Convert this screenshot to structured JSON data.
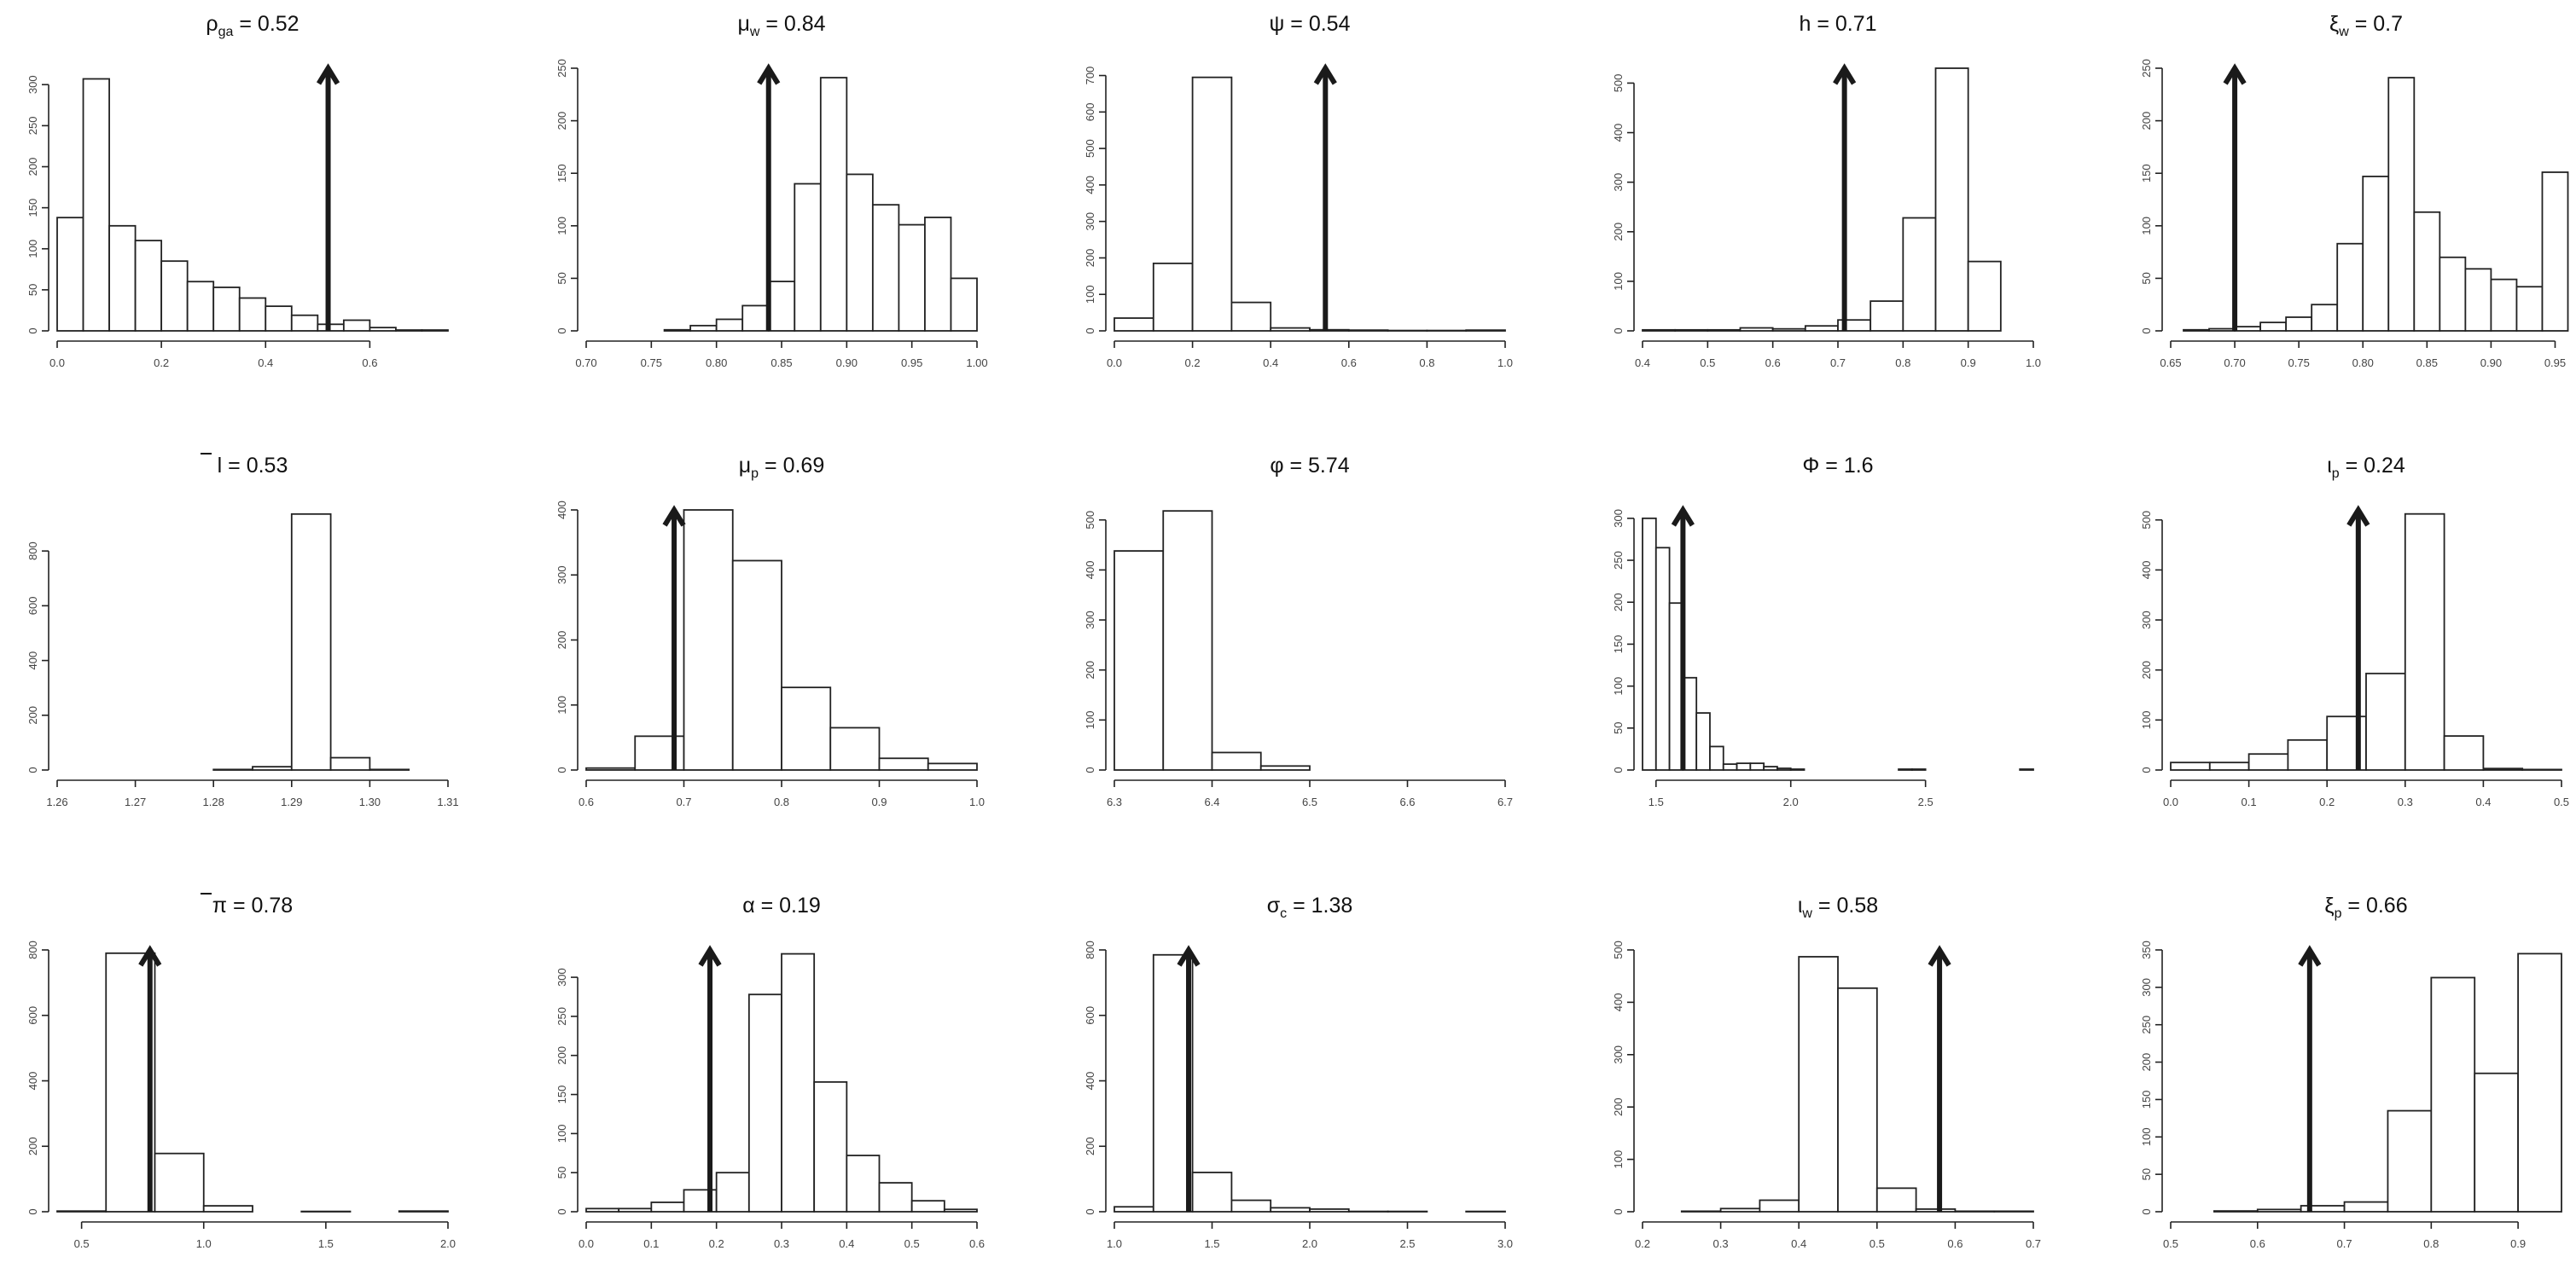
{
  "chart_data": [
    {
      "type": "bar",
      "title": {
        "base": "ρ",
        "sub": "ga",
        "rest": " = 0.52"
      },
      "marker": 0.52,
      "bins": [
        0,
        0.05,
        0.1,
        0.15,
        0.2,
        0.25,
        0.3,
        0.35,
        0.4,
        0.45,
        0.5,
        0.55,
        0.6,
        0.65,
        0.7,
        0.75
      ],
      "counts": [
        138,
        307,
        128,
        110,
        85,
        60,
        53,
        40,
        30,
        19,
        8,
        13,
        4,
        1,
        1
      ],
      "xlim": [
        0,
        0.75
      ],
      "xticks": [
        0.0,
        0.2,
        0.4,
        0.6
      ],
      "xtick_labels": [
        "0.0",
        "0.2",
        "0.4",
        "0.6"
      ],
      "ylim": [
        0,
        320
      ],
      "yticks": [
        0,
        50,
        100,
        150,
        200,
        250,
        300
      ],
      "ytick_labels": [
        "0",
        "50",
        "100",
        "150",
        "200",
        "250",
        "300"
      ]
    },
    {
      "type": "bar",
      "title": {
        "base": "μ",
        "sub": "w",
        "rest": " = 0.84"
      },
      "marker": 0.84,
      "bins": [
        0.7,
        0.72,
        0.74,
        0.76,
        0.78,
        0.8,
        0.82,
        0.84,
        0.86,
        0.88,
        0.9,
        0.92,
        0.94,
        0.96,
        0.98,
        1.0
      ],
      "counts": [
        0,
        0,
        0,
        1,
        5,
        11,
        24,
        47,
        140,
        241,
        149,
        120,
        101,
        108,
        50
      ],
      "xlim": [
        0.7,
        1.0
      ],
      "xticks": [
        0.7,
        0.75,
        0.8,
        0.85,
        0.9,
        0.95,
        1.0
      ],
      "xtick_labels": [
        "0.70",
        "0.75",
        "0.80",
        "0.85",
        "0.90",
        "0.95",
        "1.00"
      ],
      "ylim": [
        0,
        250
      ],
      "yticks": [
        0,
        50,
        100,
        150,
        200,
        250
      ],
      "ytick_labels": [
        "0",
        "50",
        "100",
        "150",
        "200",
        "250"
      ]
    },
    {
      "type": "bar",
      "title": {
        "base": "ψ",
        "sub": "",
        "rest": " = 0.54"
      },
      "marker": 0.54,
      "bins": [
        0,
        0.1,
        0.2,
        0.3,
        0.4,
        0.5,
        0.6,
        0.7,
        0.8,
        0.9,
        1.0
      ],
      "counts": [
        35,
        185,
        695,
        78,
        8,
        3,
        2,
        1,
        1,
        2
      ],
      "xlim": [
        0,
        1
      ],
      "xticks": [
        0,
        0.2,
        0.4,
        0.6,
        0.8,
        1.0
      ],
      "xtick_labels": [
        "0.0",
        "0.2",
        "0.4",
        "0.6",
        "0.8",
        "1.0"
      ],
      "ylim": [
        0,
        720
      ],
      "yticks": [
        0,
        100,
        200,
        300,
        400,
        500,
        600,
        700
      ],
      "ytick_labels": [
        "0",
        "100",
        "200",
        "300",
        "400",
        "500",
        "600",
        "700"
      ]
    },
    {
      "type": "bar",
      "title": {
        "base": "h",
        "sub": "",
        "rest": " = 0.71"
      },
      "marker": 0.71,
      "bins": [
        0.4,
        0.45,
        0.5,
        0.55,
        0.6,
        0.65,
        0.7,
        0.75,
        0.8,
        0.85,
        0.9,
        0.95
      ],
      "counts": [
        2,
        2,
        2,
        6,
        4,
        10,
        22,
        60,
        228,
        530,
        140
      ],
      "xlim": [
        0.4,
        1.0
      ],
      "xticks": [
        0.4,
        0.5,
        0.6,
        0.7,
        0.8,
        0.9,
        1.0
      ],
      "xtick_labels": [
        "0.4",
        "0.5",
        "0.6",
        "0.7",
        "0.8",
        "0.9",
        "1.0"
      ],
      "ylim": [
        0,
        530
      ],
      "yticks": [
        0,
        100,
        200,
        300,
        400,
        500
      ],
      "ytick_labels": [
        "0",
        "100",
        "200",
        "300",
        "400",
        "500"
      ]
    },
    {
      "type": "bar",
      "title": {
        "base": "ξ",
        "sub": "w",
        "rest": " = 0.7"
      },
      "marker": 0.7,
      "bins": [
        0.66,
        0.68,
        0.7,
        0.72,
        0.74,
        0.76,
        0.78,
        0.8,
        0.82,
        0.84,
        0.86,
        0.88,
        0.9,
        0.92,
        0.94,
        0.96
      ],
      "counts": [
        1,
        2,
        4,
        8,
        13,
        25,
        83,
        147,
        241,
        113,
        70,
        59,
        49,
        42,
        151
      ],
      "xlim": [
        0.65,
        0.955
      ],
      "xticks": [
        0.65,
        0.7,
        0.75,
        0.8,
        0.85,
        0.9,
        0.95
      ],
      "xtick_labels": [
        "0.65",
        "0.70",
        "0.75",
        "0.80",
        "0.85",
        "0.90",
        "0.95"
      ],
      "ylim": [
        0,
        250
      ],
      "yticks": [
        0,
        50,
        100,
        150,
        200,
        250
      ],
      "ytick_labels": [
        "0",
        "50",
        "100",
        "150",
        "200",
        "250"
      ]
    },
    {
      "type": "bar",
      "title": {
        "base": "l",
        "sub": "",
        "rest": " = 0.53",
        "bar": true
      },
      "marker": null,
      "bins": [
        1.26,
        1.265,
        1.27,
        1.275,
        1.28,
        1.285,
        1.29,
        1.295,
        1.3,
        1.305,
        1.31
      ],
      "counts": [
        0,
        0,
        0,
        0,
        2,
        12,
        935,
        45,
        2,
        0
      ],
      "xlim": [
        1.26,
        1.31
      ],
      "xticks": [
        1.26,
        1.27,
        1.28,
        1.29,
        1.3,
        1.31
      ],
      "xtick_labels": [
        "1.26",
        "1.27",
        "1.28",
        "1.29",
        "1.30",
        "1.31"
      ],
      "ylim": [
        0,
        950
      ],
      "yticks": [
        0,
        200,
        400,
        600,
        800
      ],
      "ytick_labels": [
        "0",
        "200",
        "400",
        "600",
        "800"
      ]
    },
    {
      "type": "bar",
      "title": {
        "base": "μ",
        "sub": "p",
        "rest": " = 0.69"
      },
      "marker": 0.69,
      "bins": [
        0.6,
        0.65,
        0.7,
        0.75,
        0.8,
        0.85,
        0.9,
        0.95,
        1.0
      ],
      "counts": [
        3,
        52,
        400,
        322,
        127,
        65,
        18,
        10
      ],
      "xlim": [
        0.6,
        1.0
      ],
      "xticks": [
        0.6,
        0.7,
        0.8,
        0.9,
        1.0
      ],
      "xtick_labels": [
        "0.6",
        "0.7",
        "0.8",
        "0.9",
        "1.0"
      ],
      "ylim": [
        0,
        400
      ],
      "yticks": [
        0,
        100,
        200,
        300,
        400
      ],
      "ytick_labels": [
        "0",
        "100",
        "200",
        "300",
        "400"
      ]
    },
    {
      "type": "bar",
      "title": {
        "base": "φ",
        "sub": "",
        "rest": " = 5.74"
      },
      "marker": null,
      "bins": [
        6.3,
        6.35,
        6.4,
        6.45,
        6.5
      ],
      "counts": [
        438,
        518,
        35,
        8
      ],
      "xlim": [
        6.3,
        6.7
      ],
      "xticks": [
        6.3,
        6.4,
        6.5,
        6.6,
        6.7
      ],
      "xtick_labels": [
        "6.3",
        "6.4",
        "6.5",
        "6.6",
        "6.7"
      ],
      "ylim": [
        0,
        520
      ],
      "yticks": [
        0,
        100,
        200,
        300,
        400,
        500
      ],
      "ytick_labels": [
        "0",
        "100",
        "200",
        "300",
        "400",
        "500"
      ]
    },
    {
      "type": "bar",
      "title": {
        "base": "Φ",
        "sub": "",
        "rest": " = 1.6"
      },
      "marker": 1.6,
      "bins": [
        1.45,
        1.5,
        1.55,
        1.6,
        1.65,
        1.7,
        1.75,
        1.8,
        1.85,
        1.9,
        1.95,
        2.0,
        2.05,
        2.1,
        2.15,
        2.2,
        2.25,
        2.3,
        2.35,
        2.4,
        2.45,
        2.5,
        2.55,
        2.6,
        2.65,
        2.7,
        2.75,
        2.8,
        2.85,
        2.9
      ],
      "counts": [
        300,
        265,
        199,
        110,
        68,
        28,
        7,
        8,
        8,
        4,
        2,
        1,
        0,
        0,
        0,
        0,
        0,
        0,
        0,
        1,
        1,
        0,
        0,
        0,
        0,
        0,
        0,
        0,
        1
      ],
      "xlim": [
        1.45,
        2.9
      ],
      "xticks": [
        1.5,
        2.0,
        2.5
      ],
      "xtick_labels": [
        "1.5",
        "2.0",
        "2.5"
      ],
      "ylim": [
        0,
        310
      ],
      "yticks": [
        0,
        50,
        100,
        150,
        200,
        250,
        300
      ],
      "ytick_labels": [
        "0",
        "50",
        "100",
        "150",
        "200",
        "250",
        "300"
      ]
    },
    {
      "type": "bar",
      "title": {
        "base": "ι",
        "sub": "p",
        "rest": " = 0.24"
      },
      "marker": 0.24,
      "bins": [
        0,
        0.05,
        0.1,
        0.15,
        0.2,
        0.25,
        0.3,
        0.35,
        0.4,
        0.45,
        0.5
      ],
      "counts": [
        15,
        15,
        32,
        60,
        107,
        193,
        512,
        68,
        3,
        1
      ],
      "xlim": [
        0,
        0.5
      ],
      "xticks": [
        0,
        0.1,
        0.2,
        0.3,
        0.4,
        0.5
      ],
      "xtick_labels": [
        "0.0",
        "0.1",
        "0.2",
        "0.3",
        "0.4",
        "0.5"
      ],
      "ylim": [
        0,
        520
      ],
      "yticks": [
        0,
        100,
        200,
        300,
        400,
        500
      ],
      "ytick_labels": [
        "0",
        "100",
        "200",
        "300",
        "400",
        "500"
      ]
    },
    {
      "type": "bar",
      "title": {
        "base": "π",
        "sub": "",
        "rest": " = 0.78",
        "bar": true
      },
      "marker": 0.78,
      "bins": [
        0.4,
        0.6,
        0.8,
        1.0,
        1.2,
        1.4,
        1.6,
        1.8,
        2.0
      ],
      "counts": [
        2,
        790,
        178,
        18,
        0,
        1,
        0,
        2
      ],
      "xlim": [
        0.4,
        2.0
      ],
      "xticks": [
        0.5,
        1.0,
        1.5,
        2.0
      ],
      "xtick_labels": [
        "0.5",
        "1.0",
        "1.5",
        "2.0"
      ],
      "ylim": [
        0,
        800
      ],
      "yticks": [
        0,
        200,
        400,
        600,
        800
      ],
      "ytick_labels": [
        "0",
        "200",
        "400",
        "600",
        "800"
      ]
    },
    {
      "type": "bar",
      "title": {
        "base": "α",
        "sub": "",
        "rest": " = 0.19"
      },
      "marker": 0.19,
      "bins": [
        0,
        0.05,
        0.1,
        0.15,
        0.2,
        0.25,
        0.3,
        0.35,
        0.4,
        0.45,
        0.5,
        0.55,
        0.6
      ],
      "counts": [
        4,
        4,
        12,
        28,
        50,
        278,
        330,
        166,
        72,
        37,
        14,
        3
      ],
      "xlim": [
        0,
        0.6
      ],
      "xticks": [
        0,
        0.1,
        0.2,
        0.3,
        0.4,
        0.5,
        0.6
      ],
      "xtick_labels": [
        "0.0",
        "0.1",
        "0.2",
        "0.3",
        "0.4",
        "0.5",
        "0.6"
      ],
      "ylim": [
        0,
        335
      ],
      "yticks": [
        0,
        50,
        100,
        150,
        200,
        250,
        300
      ],
      "ytick_labels": [
        "0",
        "50",
        "100",
        "150",
        "200",
        "250",
        "300"
      ]
    },
    {
      "type": "bar",
      "title": {
        "base": "σ",
        "sub": "c",
        "rest": " = 1.38"
      },
      "marker": 1.38,
      "bins": [
        1.0,
        1.2,
        1.4,
        1.6,
        1.8,
        2.0,
        2.2,
        2.4,
        2.6,
        2.8,
        3.0
      ],
      "counts": [
        15,
        785,
        120,
        35,
        12,
        8,
        1,
        1,
        0,
        1
      ],
      "xlim": [
        1.0,
        3.0
      ],
      "xticks": [
        1.0,
        1.5,
        2.0,
        2.5,
        3.0
      ],
      "xtick_labels": [
        "1.0",
        "1.5",
        "2.0",
        "2.5",
        "3.0"
      ],
      "ylim": [
        0,
        800
      ],
      "yticks": [
        0,
        200,
        400,
        600,
        800
      ],
      "ytick_labels": [
        "0",
        "200",
        "400",
        "600",
        "800"
      ]
    },
    {
      "type": "bar",
      "title": {
        "base": "ι",
        "sub": "w",
        "rest": " = 0.58"
      },
      "marker": 0.58,
      "bins": [
        0.2,
        0.25,
        0.3,
        0.35,
        0.4,
        0.45,
        0.5,
        0.55,
        0.6,
        0.65,
        0.7
      ],
      "counts": [
        0,
        1,
        6,
        22,
        487,
        427,
        45,
        5,
        1,
        1
      ],
      "xlim": [
        0.2,
        0.7
      ],
      "xticks": [
        0.2,
        0.3,
        0.4,
        0.5,
        0.6,
        0.7
      ],
      "xtick_labels": [
        "0.2",
        "0.3",
        "0.4",
        "0.5",
        "0.6",
        "0.7"
      ],
      "ylim": [
        0,
        500
      ],
      "yticks": [
        0,
        100,
        200,
        300,
        400,
        500
      ],
      "ytick_labels": [
        "0",
        "100",
        "200",
        "300",
        "400",
        "500"
      ]
    },
    {
      "type": "bar",
      "title": {
        "base": "ξ",
        "sub": "p",
        "rest": " = 0.66"
      },
      "marker": 0.66,
      "bins": [
        0.5,
        0.55,
        0.6,
        0.65,
        0.7,
        0.75,
        0.8,
        0.85,
        0.9,
        0.95
      ],
      "counts": [
        0,
        1,
        3,
        8,
        13,
        135,
        313,
        185,
        345
      ],
      "xlim": [
        0.5,
        0.95
      ],
      "xticks": [
        0.5,
        0.6,
        0.7,
        0.8,
        0.9
      ],
      "xtick_labels": [
        "0.5",
        "0.6",
        "0.7",
        "0.8",
        "0.9"
      ],
      "ylim": [
        0,
        350
      ],
      "yticks": [
        0,
        50,
        100,
        150,
        200,
        250,
        300,
        350
      ],
      "ytick_labels": [
        "0",
        "50",
        "100",
        "150",
        "200",
        "250",
        "300",
        "350"
      ]
    }
  ]
}
